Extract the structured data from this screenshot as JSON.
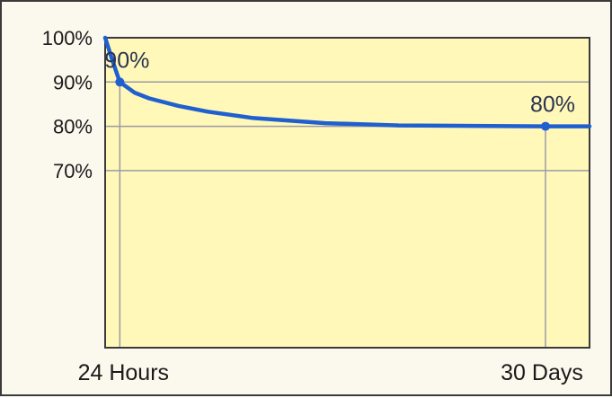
{
  "chart_data": {
    "type": "line",
    "title": "",
    "xlabel": "",
    "ylabel": "",
    "y_ticks": [
      "100%",
      "90%",
      "80%",
      "70%"
    ],
    "y_tick_values": [
      100,
      90,
      80,
      70
    ],
    "x_tick_labels": [
      "24 Hours",
      "30 Days"
    ],
    "ylim": [
      30,
      100
    ],
    "grid": true,
    "series": [
      {
        "x": [
          0,
          0.5,
          1,
          2,
          3,
          5,
          7,
          10,
          15,
          20,
          25,
          30,
          33
        ],
        "y": [
          100,
          94.8,
          90,
          87.6,
          86.3,
          84.6,
          83.3,
          81.9,
          80.7,
          80.2,
          80.1,
          80,
          80
        ],
        "color": "#1f5fd0"
      }
    ],
    "points": [
      {
        "x": 1,
        "y": 90,
        "label": "90%"
      },
      {
        "x": 30,
        "y": 80,
        "label": "80%"
      }
    ],
    "colors": {
      "plot_background": "#fff8b8",
      "gridline": "#9a9aa8",
      "line": "#1f5fd0",
      "point": "#1f5fd0"
    }
  }
}
